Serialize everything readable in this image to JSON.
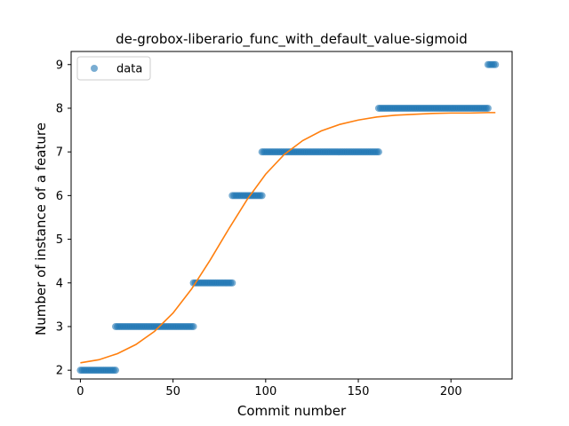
{
  "chart_data": {
    "type": "scatter",
    "title": "de-grobox-liberario_func_with_default_value-sigmoid",
    "xlabel": "Commit number",
    "ylabel": "Number of instance of a feature",
    "xlim": [
      -5,
      233
    ],
    "ylim": [
      1.8,
      9.3
    ],
    "xticks": [
      0,
      50,
      100,
      150,
      200
    ],
    "yticks": [
      2,
      3,
      4,
      5,
      6,
      7,
      8,
      9
    ],
    "grid": false,
    "legend": {
      "position": "top-left",
      "entries": [
        "data"
      ]
    },
    "colors": {
      "data": "#1f77b4",
      "fit": "#ff7f0e"
    },
    "series": [
      {
        "name": "data",
        "kind": "scatter",
        "segments": [
          {
            "x_start": 0,
            "x_end": 19,
            "y": 2
          },
          {
            "x_start": 19,
            "x_end": 61,
            "y": 3
          },
          {
            "x_start": 61,
            "x_end": 82,
            "y": 4
          },
          {
            "x_start": 82,
            "x_end": 98,
            "y": 6
          },
          {
            "x_start": 98,
            "x_end": 161,
            "y": 7
          },
          {
            "x_start": 161,
            "x_end": 220,
            "y": 8
          },
          {
            "x_start": 220,
            "x_end": 224,
            "y": 9
          }
        ]
      },
      {
        "kind": "line",
        "model": "sigmoid",
        "x": [
          0,
          10,
          20,
          30,
          40,
          50,
          60,
          70,
          80,
          90,
          100,
          110,
          120,
          130,
          140,
          150,
          160,
          170,
          180,
          190,
          200,
          210,
          220,
          224
        ],
        "y": [
          2.17,
          2.24,
          2.38,
          2.59,
          2.89,
          3.31,
          3.86,
          4.52,
          5.23,
          5.91,
          6.49,
          6.94,
          7.26,
          7.48,
          7.63,
          7.73,
          7.8,
          7.84,
          7.86,
          7.88,
          7.89,
          7.89,
          7.9,
          7.9
        ]
      }
    ]
  }
}
